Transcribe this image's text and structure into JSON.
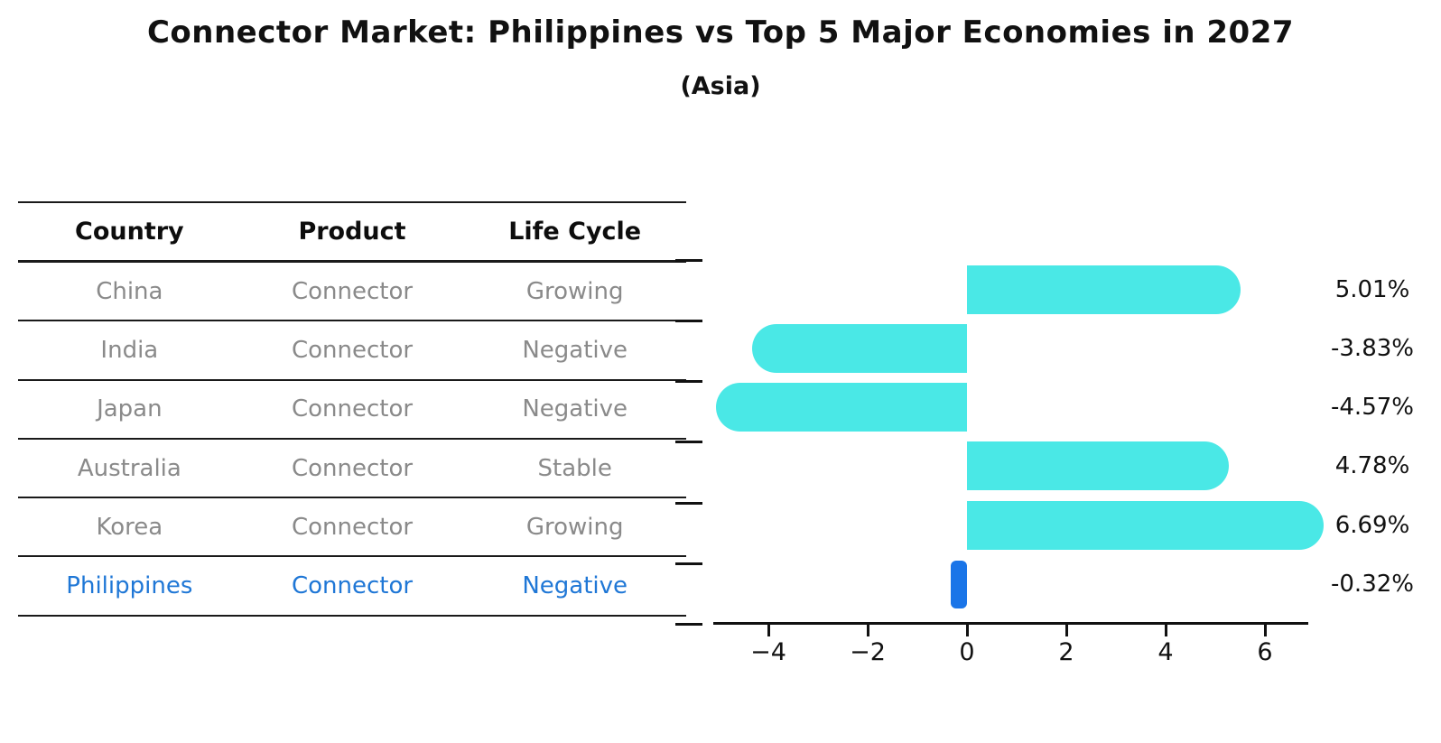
{
  "title": "Connector Market: Philippines vs Top 5 Major Economies in 2027",
  "subtitle": "(Asia)",
  "table": {
    "headers": [
      "Country",
      "Product",
      "Life Cycle"
    ],
    "rows": [
      {
        "country": "China",
        "product": "Connector",
        "life_cycle": "Growing",
        "highlighted": false
      },
      {
        "country": "India",
        "product": "Connector",
        "life_cycle": "Negative",
        "highlighted": false
      },
      {
        "country": "Japan",
        "product": "Connector",
        "life_cycle": "Negative",
        "highlighted": false
      },
      {
        "country": "Australia",
        "product": "Connector",
        "life_cycle": "Stable",
        "highlighted": false
      },
      {
        "country": "Korea",
        "product": "Connector",
        "life_cycle": "Growing",
        "highlighted": false
      },
      {
        "country": "Philippines",
        "product": "Connector",
        "life_cycle": "Negative",
        "highlighted": true
      }
    ]
  },
  "chart_data": {
    "type": "bar",
    "orientation": "horizontal",
    "title": "Connector Market: Philippines vs Top 5 Major Economies in 2027",
    "subtitle": "(Asia)",
    "categories": [
      "China",
      "India",
      "Japan",
      "Australia",
      "Korea",
      "Philippines"
    ],
    "values": [
      5.01,
      -3.83,
      -4.57,
      4.78,
      6.69,
      -0.32
    ],
    "value_labels": [
      "5.01%",
      "-3.83%",
      "-4.57%",
      "4.78%",
      "6.69%",
      "-0.32%"
    ],
    "unit": "%",
    "x_ticks": [
      -4,
      -2,
      0,
      2,
      4,
      6
    ],
    "x_tick_labels": [
      "−4",
      "−2",
      "0",
      "2",
      "4",
      "6"
    ],
    "xlim": [
      -5.15,
      6.95
    ],
    "grid": false,
    "legend": false,
    "highlight_category": "Philippines"
  },
  "colors": {
    "bar": "#4AE8E6",
    "highlight_bar": "#1A75E8",
    "highlight_text": "#1F77D6",
    "row_text": "#8A8A8A",
    "axis": "#111111"
  }
}
